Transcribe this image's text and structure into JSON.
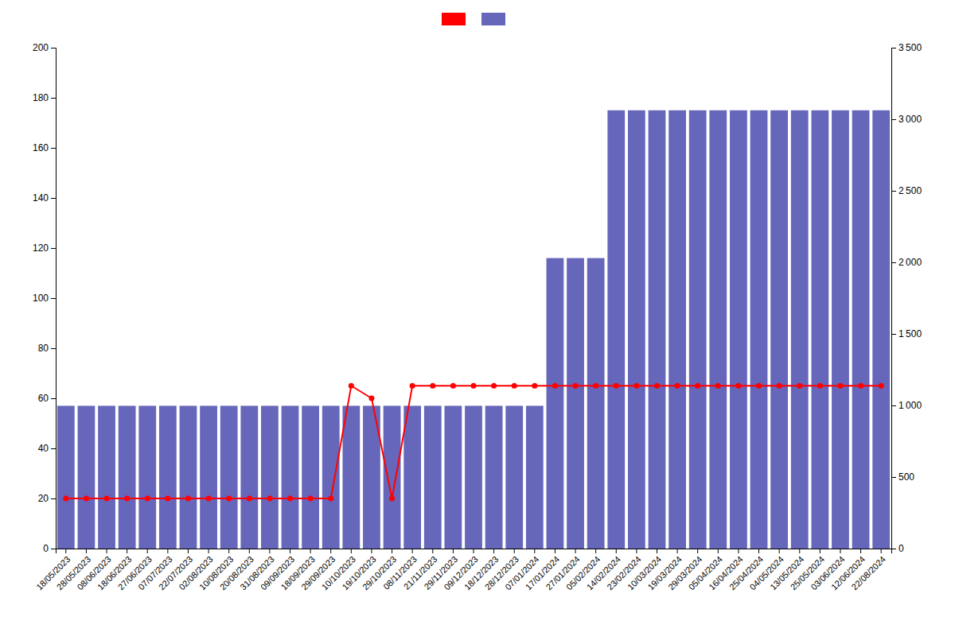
{
  "chart_data": {
    "type": "bar",
    "categories": [
      "18/05/2023",
      "28/05/2023",
      "08/06/2023",
      "18/06/2023",
      "27/06/2023",
      "07/07/2023",
      "22/07/2023",
      "02/08/2023",
      "10/08/2023",
      "20/08/2023",
      "31/08/2023",
      "09/09/2023",
      "18/09/2023",
      "29/09/2023",
      "10/10/2023",
      "19/10/2023",
      "29/10/2023",
      "08/11/2023",
      "21/11/2023",
      "29/11/2023",
      "09/12/2023",
      "18/12/2023",
      "28/12/2023",
      "07/01/2024",
      "17/01/2024",
      "27/01/2024",
      "05/02/2024",
      "14/02/2024",
      "23/02/2024",
      "10/03/2024",
      "19/03/2024",
      "29/03/2024",
      "05/04/2024",
      "16/04/2024",
      "25/04/2024",
      "04/05/2024",
      "13/05/2024",
      "25/05/2024",
      "03/06/2024",
      "12/06/2024",
      "22/08/2024"
    ],
    "series": [
      {
        "type": "line",
        "color": "#ff0000",
        "marker": "circle",
        "values": [
          20,
          20,
          20,
          20,
          20,
          20,
          20,
          20,
          20,
          20,
          20,
          20,
          20,
          20,
          65,
          60,
          20,
          65,
          65,
          65,
          65,
          65,
          65,
          65,
          65,
          65,
          65,
          65,
          65,
          65,
          65,
          65,
          65,
          65,
          65,
          65,
          65,
          65,
          65,
          65,
          65
        ]
      },
      {
        "type": "bar",
        "color": "#6666bb",
        "values": [
          57,
          57,
          57,
          57,
          57,
          57,
          57,
          57,
          57,
          57,
          57,
          57,
          57,
          57,
          57,
          57,
          57,
          57,
          57,
          57,
          57,
          57,
          57,
          57,
          116,
          116,
          116,
          175,
          175,
          175,
          175,
          175,
          175,
          175,
          175,
          175,
          175,
          175,
          175,
          175,
          175
        ]
      }
    ],
    "ylim": [
      0,
      200
    ],
    "yticks": [
      0,
      20,
      40,
      60,
      80,
      100,
      120,
      140,
      160,
      180,
      200
    ],
    "y2lim": [
      0,
      3500
    ],
    "y2ticks": [
      0,
      500,
      {
        "value": 1000,
        "label": "1 000"
      },
      {
        "value": 1500,
        "label": "1 500"
      },
      {
        "value": 2000,
        "label": "2 000"
      },
      {
        "value": 2500,
        "label": "2 500"
      },
      {
        "value": 3000,
        "label": "3 000"
      },
      {
        "value": 3500,
        "label": "3 500"
      }
    ],
    "grid": false,
    "legend": "top"
  }
}
